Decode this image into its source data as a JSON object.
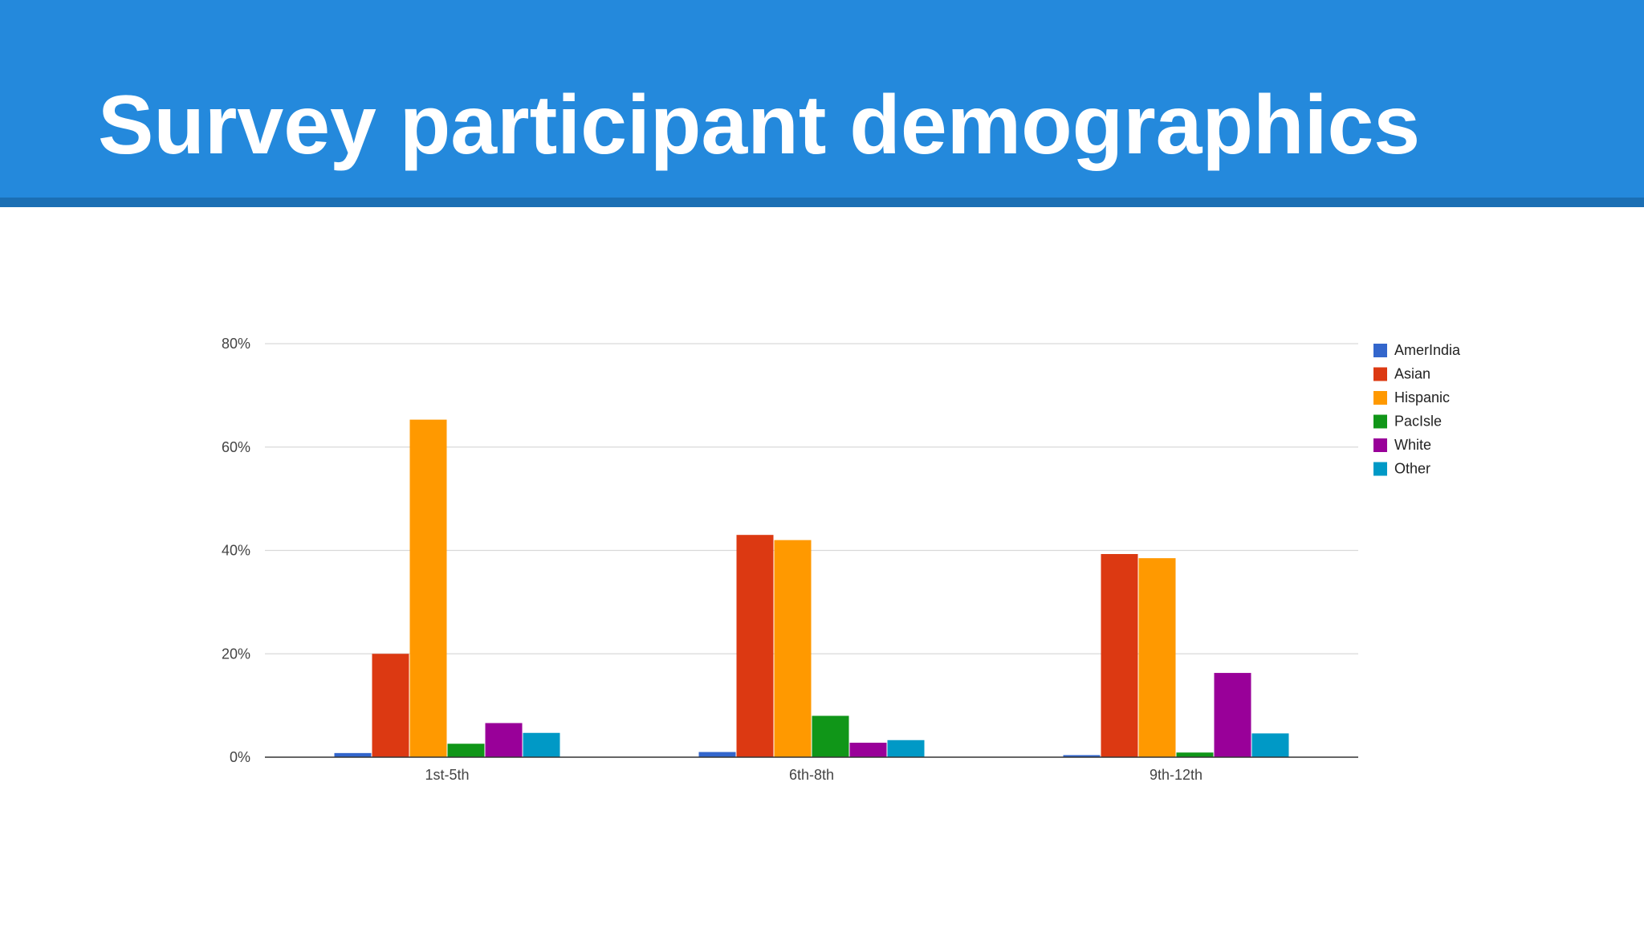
{
  "slide": {
    "title": "Survey participant demographics",
    "header_color": "#2489dc",
    "header_rule_color": "#1b6fb4"
  },
  "chart_data": {
    "type": "bar",
    "title": "",
    "xlabel": "",
    "ylabel": "",
    "categories": [
      "1st-5th",
      "6th-8th",
      "9th-12th"
    ],
    "ylim": [
      0,
      80
    ],
    "yticks": [
      0,
      20,
      40,
      60,
      80
    ],
    "ytick_labels": [
      "0%",
      "20%",
      "40%",
      "60%",
      "80%"
    ],
    "grid": true,
    "legend_position": "right",
    "series": [
      {
        "name": "AmerIndia",
        "color": "#3366cc",
        "values": [
          0.8,
          1.0,
          0.4
        ]
      },
      {
        "name": "Asian",
        "color": "#dc3912",
        "values": [
          20.0,
          43.0,
          39.3
        ]
      },
      {
        "name": "Hispanic",
        "color": "#ff9900",
        "values": [
          65.3,
          42.0,
          38.5
        ]
      },
      {
        "name": "PacIsle",
        "color": "#109618",
        "values": [
          2.6,
          8.0,
          0.9
        ]
      },
      {
        "name": "White",
        "color": "#990099",
        "values": [
          6.6,
          2.8,
          16.3
        ]
      },
      {
        "name": "Other",
        "color": "#0099c6",
        "values": [
          4.7,
          3.3,
          4.6
        ]
      }
    ]
  }
}
